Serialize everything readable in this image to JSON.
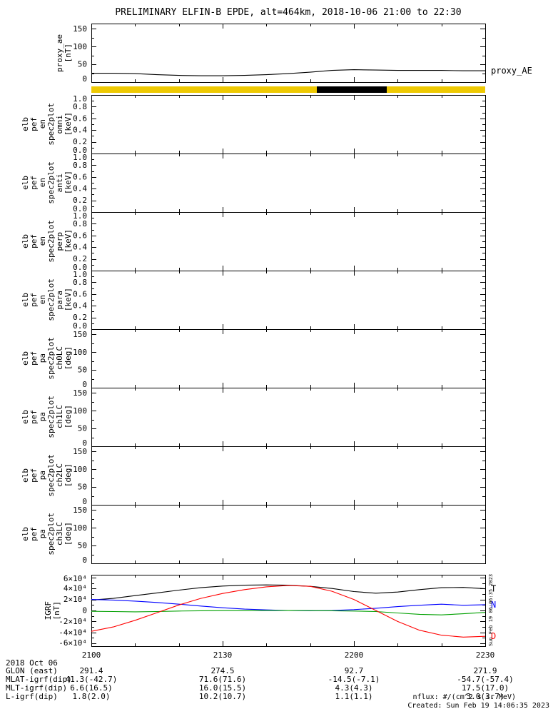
{
  "title": "PRELIMINARY ELFIN-B EPDE, alt=464km, 2018-10-06 21:00 to 22:30",
  "x_axis": {
    "tick_labels": [
      "2100",
      "2130",
      "2200",
      "2230"
    ],
    "tick_minutes": [
      0,
      30,
      60,
      90
    ]
  },
  "state_bar": {
    "base_color": "#eec902",
    "segment": {
      "color": "#000000",
      "start_min": 51.5,
      "end_min": 67.5
    }
  },
  "bottom": {
    "date_label": "2018 Oct 06",
    "rows": [
      {
        "header": "GLON (east)",
        "values": [
          "291.4",
          "274.5",
          "92.7",
          "271.9"
        ]
      },
      {
        "header": "MLAT-igrf(dip)",
        "values": [
          "41.3(-42.7)",
          "71.6(71.6)",
          "-14.5(-7.1)",
          "-54.7(-57.4)"
        ]
      },
      {
        "header": "MLT-igrf(dip)",
        "values": [
          "6.6(16.5)",
          "16.0(15.5)",
          "4.3(4.3)",
          "17.5(17.0)"
        ]
      },
      {
        "header": "L-igrf(dip)",
        "values": [
          "1.8(2.0)",
          "10.2(10.7)",
          "1.1(1.1)",
          "3.0(3.7)"
        ]
      }
    ]
  },
  "footer": {
    "nflux_note": "nflux: #/(cm^2 s sr MeV)",
    "created": "Created: Sun Feb 19 14:06:35 2023",
    "side_timestamp": "Sun Feb 19 06:06:35 2023"
  },
  "chart_data": [
    {
      "id": "proxy_ae",
      "type": "line",
      "ylabel_lines": [
        "proxy_ae",
        "[nT]"
      ],
      "yrange": [
        0,
        165
      ],
      "yticks": [
        {
          "value": 0,
          "label": "0"
        },
        {
          "value": 50,
          "label": "50"
        },
        {
          "value": 100,
          "label": "100"
        },
        {
          "value": 150,
          "label": "150"
        }
      ],
      "x_minutes": [
        0,
        5,
        10,
        15,
        20,
        25,
        30,
        35,
        40,
        45,
        50,
        55,
        60,
        65,
        70,
        75,
        80,
        85,
        90
      ],
      "series": [
        {
          "name": "proxy_AE",
          "label": "proxy_AE",
          "color": "#000000",
          "values": [
            25,
            25,
            24,
            21,
            19,
            18,
            18,
            19,
            21,
            24,
            28,
            33,
            35,
            34,
            33,
            33,
            33,
            32,
            32
          ]
        }
      ]
    },
    {
      "id": "omni",
      "type": "spectrogram",
      "ylabel_lines": [
        "elb",
        "pef",
        "en",
        "spec2plot",
        "omni",
        "[keV]"
      ],
      "yrange": [
        0,
        1
      ],
      "yticks": [
        {
          "value": 0,
          "label": "0.0"
        },
        {
          "value": 0.2,
          "label": "0.2"
        },
        {
          "value": 0.4,
          "label": "0.4"
        },
        {
          "value": 0.6,
          "label": "0.6"
        },
        {
          "value": 0.8,
          "label": "0.8"
        },
        {
          "value": 1,
          "label": "1.0"
        }
      ],
      "series": []
    },
    {
      "id": "anti",
      "type": "spectrogram",
      "ylabel_lines": [
        "elb",
        "pef",
        "en",
        "spec2plot",
        "anti",
        "[keV]"
      ],
      "yrange": [
        0,
        1
      ],
      "yticks": [
        {
          "value": 0,
          "label": "0.0"
        },
        {
          "value": 0.2,
          "label": "0.2"
        },
        {
          "value": 0.4,
          "label": "0.4"
        },
        {
          "value": 0.6,
          "label": "0.6"
        },
        {
          "value": 0.8,
          "label": "0.8"
        },
        {
          "value": 1,
          "label": "1.0"
        }
      ],
      "series": []
    },
    {
      "id": "perp",
      "type": "spectrogram",
      "ylabel_lines": [
        "elb",
        "pef",
        "en",
        "spec2plot",
        "perp",
        "[keV]"
      ],
      "yrange": [
        0,
        1
      ],
      "yticks": [
        {
          "value": 0,
          "label": "0.0"
        },
        {
          "value": 0.2,
          "label": "0.2"
        },
        {
          "value": 0.4,
          "label": "0.4"
        },
        {
          "value": 0.6,
          "label": "0.6"
        },
        {
          "value": 0.8,
          "label": "0.8"
        },
        {
          "value": 1,
          "label": "1.0"
        }
      ],
      "series": []
    },
    {
      "id": "para",
      "type": "spectrogram",
      "ylabel_lines": [
        "elb",
        "pef",
        "en",
        "spec2plot",
        "para",
        "[keV]"
      ],
      "yrange": [
        0,
        1
      ],
      "yticks": [
        {
          "value": 0,
          "label": "0.0"
        },
        {
          "value": 0.2,
          "label": "0.2"
        },
        {
          "value": 0.4,
          "label": "0.4"
        },
        {
          "value": 0.6,
          "label": "0.6"
        },
        {
          "value": 0.8,
          "label": "0.8"
        },
        {
          "value": 1,
          "label": "1.0"
        }
      ],
      "series": []
    },
    {
      "id": "ch0lc",
      "type": "spectrogram",
      "ylabel_lines": [
        "elb",
        "pef",
        "pa",
        "spec2plot",
        "ch0LC",
        "[deg]"
      ],
      "yrange": [
        0,
        165
      ],
      "yticks": [
        {
          "value": 0,
          "label": "0"
        },
        {
          "value": 50,
          "label": "50"
        },
        {
          "value": 100,
          "label": "100"
        },
        {
          "value": 150,
          "label": "150"
        }
      ],
      "series": []
    },
    {
      "id": "ch1lc",
      "type": "spectrogram",
      "ylabel_lines": [
        "elb",
        "pef",
        "pa",
        "spec2plot",
        "ch1LC",
        "[deg]"
      ],
      "yrange": [
        0,
        165
      ],
      "yticks": [
        {
          "value": 0,
          "label": "0"
        },
        {
          "value": 50,
          "label": "50"
        },
        {
          "value": 100,
          "label": "100"
        },
        {
          "value": 150,
          "label": "150"
        }
      ],
      "series": []
    },
    {
      "id": "ch2lc",
      "type": "spectrogram",
      "ylabel_lines": [
        "elb",
        "pef",
        "pa",
        "spec2plot",
        "ch2LC",
        "[deg]"
      ],
      "yrange": [
        0,
        165
      ],
      "yticks": [
        {
          "value": 0,
          "label": "0"
        },
        {
          "value": 50,
          "label": "50"
        },
        {
          "value": 100,
          "label": "100"
        },
        {
          "value": 150,
          "label": "150"
        }
      ],
      "series": []
    },
    {
      "id": "ch3lc",
      "type": "spectrogram",
      "ylabel_lines": [
        "elb",
        "pef",
        "pa",
        "spec2plot",
        "ch3LC",
        "[deg]"
      ],
      "yrange": [
        0,
        165
      ],
      "yticks": [
        {
          "value": 0,
          "label": "0"
        },
        {
          "value": 50,
          "label": "50"
        },
        {
          "value": 100,
          "label": "100"
        },
        {
          "value": 150,
          "label": "150"
        }
      ],
      "series": []
    },
    {
      "id": "igrf",
      "type": "line",
      "ylabel_lines": [
        "IGRF",
        "[nT]"
      ],
      "yrange": [
        -65000,
        65000
      ],
      "yticks": [
        {
          "value": -60000,
          "label": "-6×10⁴"
        },
        {
          "value": -40000,
          "label": "-4×10⁴"
        },
        {
          "value": -20000,
          "label": "-2×10⁴"
        },
        {
          "value": 0,
          "label": "0"
        },
        {
          "value": 20000,
          "label": "2×10⁴"
        },
        {
          "value": 40000,
          "label": "4×10⁴"
        },
        {
          "value": 60000,
          "label": "6×10⁴"
        }
      ],
      "x_minutes": [
        0,
        5,
        10,
        15,
        20,
        25,
        30,
        35,
        40,
        45,
        50,
        55,
        60,
        65,
        70,
        75,
        80,
        85,
        90
      ],
      "series": [
        {
          "name": "T",
          "label": "T",
          "color": "#000000",
          "values": [
            19000,
            22000,
            27000,
            32000,
            37000,
            41500,
            44500,
            46000,
            46500,
            46000,
            44000,
            40000,
            34500,
            31500,
            33500,
            38000,
            41500,
            42000,
            39500
          ]
        },
        {
          "name": "N",
          "label": "N",
          "color": "#0000ff",
          "values": [
            20000,
            19000,
            17000,
            14500,
            11500,
            8000,
            5000,
            2500,
            1000,
            0,
            -500,
            0,
            1500,
            4000,
            7000,
            9500,
            11500,
            9500,
            10500
          ]
        },
        {
          "name": "E",
          "label": "",
          "color": "#00a000",
          "values": [
            -1500,
            -2000,
            -2500,
            -2000,
            -1000,
            -500,
            -300,
            -200,
            -100,
            -100,
            -200,
            -500,
            -1000,
            -2000,
            -4500,
            -7000,
            -8000,
            -6000,
            -3500
          ]
        },
        {
          "name": "D",
          "label": "D",
          "color": "#ff0000",
          "values": [
            -38000,
            -30000,
            -18000,
            -4000,
            10000,
            22000,
            31000,
            38000,
            43000,
            45500,
            44000,
            35000,
            20000,
            0,
            -20000,
            -36000,
            -45000,
            -48500,
            -47000
          ]
        }
      ]
    }
  ]
}
